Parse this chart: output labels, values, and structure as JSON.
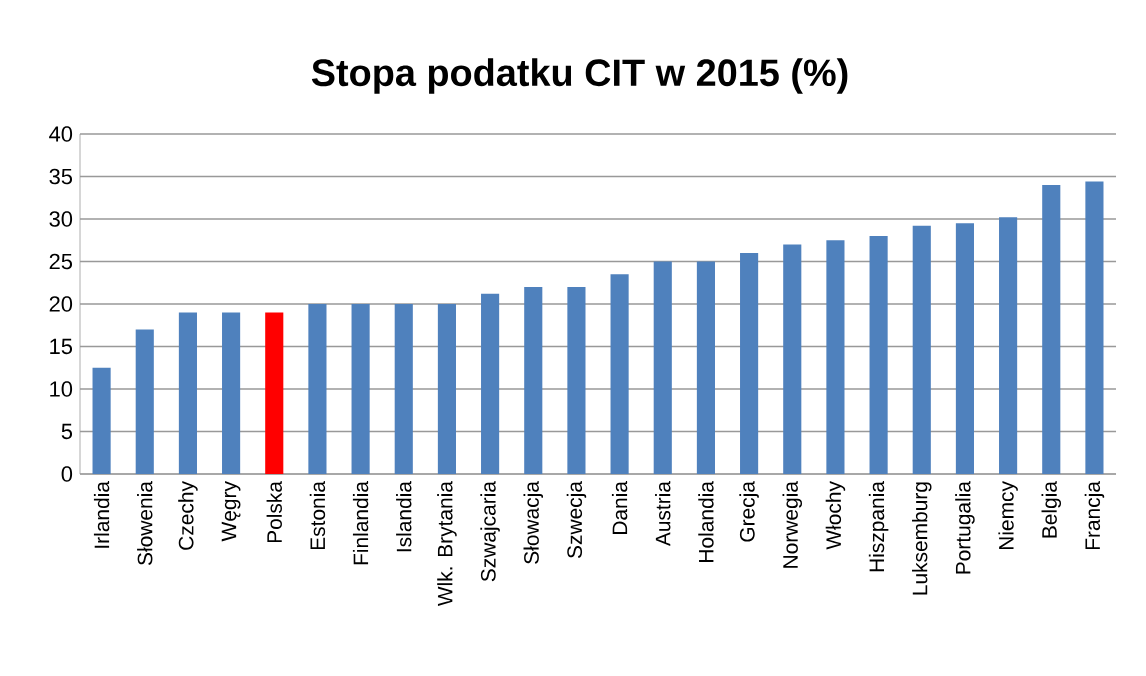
{
  "chart_data": {
    "type": "bar",
    "title": "Stopa podatku CIT w 2015 (%)",
    "categories": [
      "Irlandia",
      "Słowenia",
      "Czechy",
      "Węgry",
      "Polska",
      "Estonia",
      "Finlandia",
      "Islandia",
      "Wlk. Brytania",
      "Szwajcaria",
      "Słowacja",
      "Szwecja",
      "Dania",
      "Austria",
      "Holandia",
      "Grecja",
      "Norwegia",
      "Włochy",
      "Hiszpania",
      "Luksemburg",
      "Portugalia",
      "Niemcy",
      "Belgia",
      "Francja"
    ],
    "values": [
      12.5,
      17,
      19,
      19,
      19,
      20,
      20,
      20,
      20,
      21.2,
      22,
      22,
      23.5,
      25,
      25,
      26,
      27,
      27.5,
      28,
      29.2,
      29.5,
      30.2,
      34,
      34.4
    ],
    "colors": [
      "#4f81bd",
      "#4f81bd",
      "#4f81bd",
      "#4f81bd",
      "#ff0000",
      "#4f81bd",
      "#4f81bd",
      "#4f81bd",
      "#4f81bd",
      "#4f81bd",
      "#4f81bd",
      "#4f81bd",
      "#4f81bd",
      "#4f81bd",
      "#4f81bd",
      "#4f81bd",
      "#4f81bd",
      "#4f81bd",
      "#4f81bd",
      "#4f81bd",
      "#4f81bd",
      "#4f81bd",
      "#4f81bd",
      "#4f81bd"
    ],
    "ylim": [
      0,
      40
    ],
    "yticks": [
      0,
      5,
      10,
      15,
      20,
      25,
      30,
      35,
      40
    ],
    "grid": "y"
  }
}
